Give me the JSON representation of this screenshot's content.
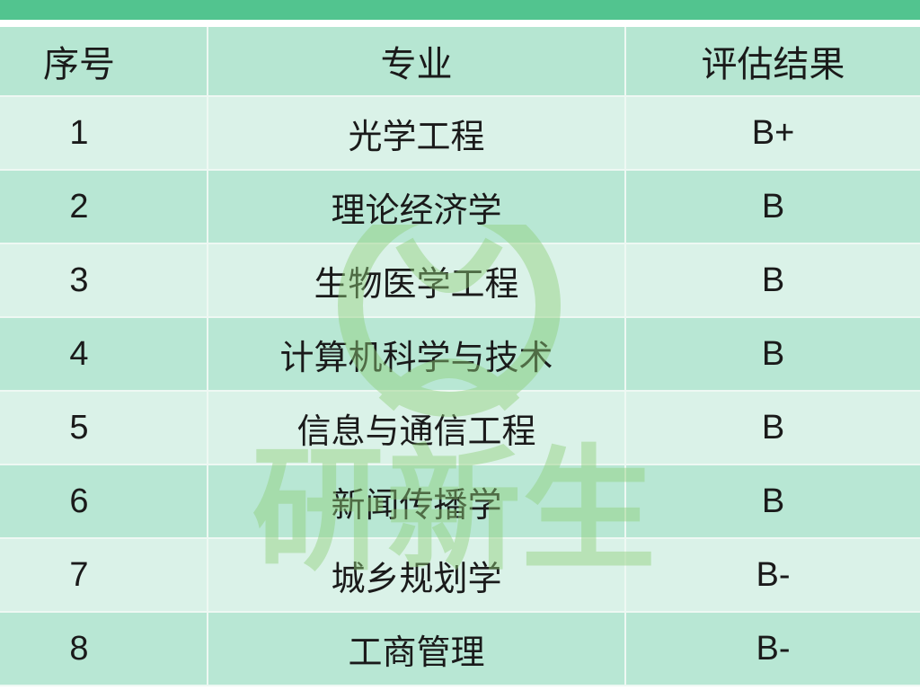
{
  "table": {
    "headers": [
      "序号",
      "专业",
      "评估结果"
    ],
    "rows": [
      {
        "index": "1",
        "major": "光学工程",
        "result": "B+"
      },
      {
        "index": "2",
        "major": "理论经济学",
        "result": "B"
      },
      {
        "index": "3",
        "major": "生物医学工程",
        "result": "B"
      },
      {
        "index": "4",
        "major": "计算机科学与技术",
        "result": "B"
      },
      {
        "index": "5",
        "major": "信息与通信工程",
        "result": "B"
      },
      {
        "index": "6",
        "major": "新闻传播学",
        "result": "B"
      },
      {
        "index": "7",
        "major": "城乡规划学",
        "result": "B-"
      },
      {
        "index": "8",
        "major": "工商管理",
        "result": "B-"
      }
    ]
  },
  "watermark": {
    "text": "研新生"
  },
  "colors": {
    "top_bar": "#52c48f",
    "header": "#b6e6d2",
    "row_light": "#daf2e8",
    "row_dark": "#b8e7d4",
    "watermark": "#7cc56a"
  }
}
